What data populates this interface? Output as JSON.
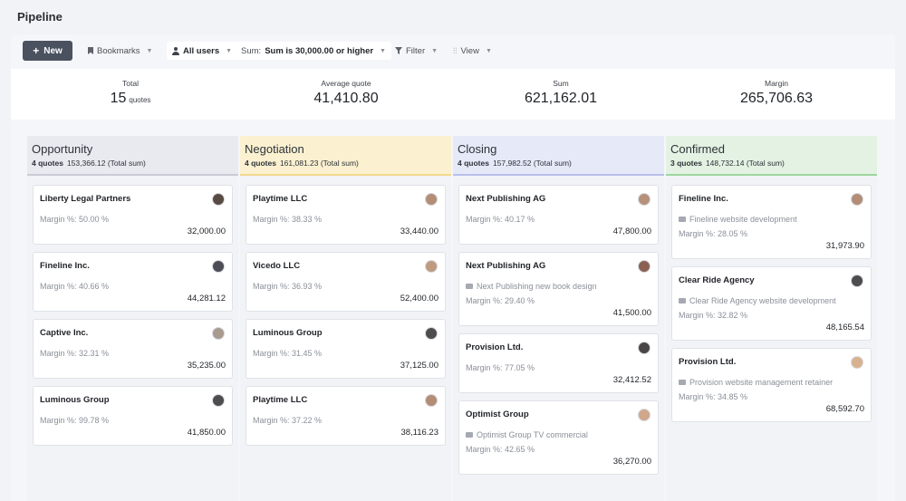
{
  "header": {
    "title": "Pipeline"
  },
  "toolbar": {
    "new_label": "New",
    "bookmarks_label": "Bookmarks",
    "users_label": "All users",
    "sum_prefix": "Sum:",
    "sum_value": "Sum is 30,000.00 or higher",
    "filter_label": "Filter",
    "view_label": "View"
  },
  "stats": {
    "total": {
      "label": "Total",
      "value": "15",
      "unit": "quotes"
    },
    "average": {
      "label": "Average quote",
      "value": "41,410.80"
    },
    "sum": {
      "label": "Sum",
      "value": "621,162.01"
    },
    "margin": {
      "label": "Margin",
      "value": "265,706.63"
    }
  },
  "columns": [
    {
      "title": "Opportunity",
      "count": "4 quotes",
      "total": "153,366.12 (Total sum)",
      "head_bg": "#e8eaf0",
      "accent": "#c9ccd4",
      "cards": [
        {
          "name": "Liberty Legal Partners",
          "margin": "Margin %: 50.00 %",
          "amount": "32,000.00",
          "avatar": "#5a4a44"
        },
        {
          "name": "Fineline Inc.",
          "margin": "Margin %: 40.66 %",
          "amount": "44,281.12",
          "avatar": "#4d4e55"
        },
        {
          "name": "Captive Inc.",
          "margin": "Margin %: 32.31 %",
          "amount": "35,235.00",
          "avatar": "#a99a8f"
        },
        {
          "name": "Luminous Group",
          "margin": "Margin %: 99.78 %",
          "amount": "41,850.00",
          "avatar": "#4f4c4e"
        }
      ]
    },
    {
      "title": "Negotiation",
      "count": "4 quotes",
      "total": "161,081.23 (Total sum)",
      "head_bg": "#fbf1d1",
      "accent": "#f2d98e",
      "cards": [
        {
          "name": "Playtime LLC",
          "margin": "Margin %: 38.33 %",
          "amount": "33,440.00",
          "avatar": "#b38d76"
        },
        {
          "name": "Vicedo LLC",
          "margin": "Margin %: 36.93 %",
          "amount": "52,400.00",
          "avatar": "#c09a80"
        },
        {
          "name": "Luminous Group",
          "margin": "Margin %: 31.45 %",
          "amount": "37,125.00",
          "avatar": "#4f4c4e"
        },
        {
          "name": "Playtime LLC",
          "margin": "Margin %: 37.22 %",
          "amount": "38,116.23",
          "avatar": "#b38d76"
        }
      ]
    },
    {
      "title": "Closing",
      "count": "4 quotes",
      "total": "157,982.52 (Total sum)",
      "head_bg": "#e6e9f7",
      "accent": "#b8c0ea",
      "cards": [
        {
          "name": "Next Publishing AG",
          "margin": "Margin %: 40.17 %",
          "amount": "47,800.00",
          "avatar": "#b8917a"
        },
        {
          "name": "Next Publishing AG",
          "desc": "Next Publishing new book design",
          "margin": "Margin %: 29.40 %",
          "amount": "41,500.00",
          "avatar": "#8a6052"
        },
        {
          "name": "Provision Ltd.",
          "margin": "Margin %: 77.05 %",
          "amount": "32,412.52",
          "avatar": "#4a4648"
        },
        {
          "name": "Optimist Group",
          "desc": "Optimist Group TV commercial",
          "margin": "Margin %: 42.65 %",
          "amount": "36,270.00",
          "avatar": "#d0a78b"
        }
      ]
    },
    {
      "title": "Confirmed",
      "count": "3 quotes",
      "total": "148,732.14 (Total sum)",
      "head_bg": "#e3f2e3",
      "accent": "#9fd6a0",
      "cards": [
        {
          "name": "Fineline Inc.",
          "desc": "Fineline website development",
          "margin": "Margin %: 28.05 %",
          "amount": "31,973.90",
          "avatar": "#b38d76"
        },
        {
          "name": "Clear Ride Agency",
          "desc": "Clear Ride Agency website development",
          "margin": "Margin %: 32.82 %",
          "amount": "48,165.54",
          "avatar": "#4f4c4e"
        },
        {
          "name": "Provision Ltd.",
          "desc": "Provision website management retainer",
          "margin": "Margin %: 34.85 %",
          "amount": "68,592.70",
          "avatar": "#d8b190"
        }
      ]
    }
  ],
  "icons": {
    "new": "plus-icon",
    "bookmarks": "bookmark-icon",
    "users": "user-icon",
    "filter": "filter-icon",
    "view": "columns-icon",
    "caret": "chevron-down-icon",
    "description": "folder-icon",
    "avatar": "avatar-icon"
  }
}
